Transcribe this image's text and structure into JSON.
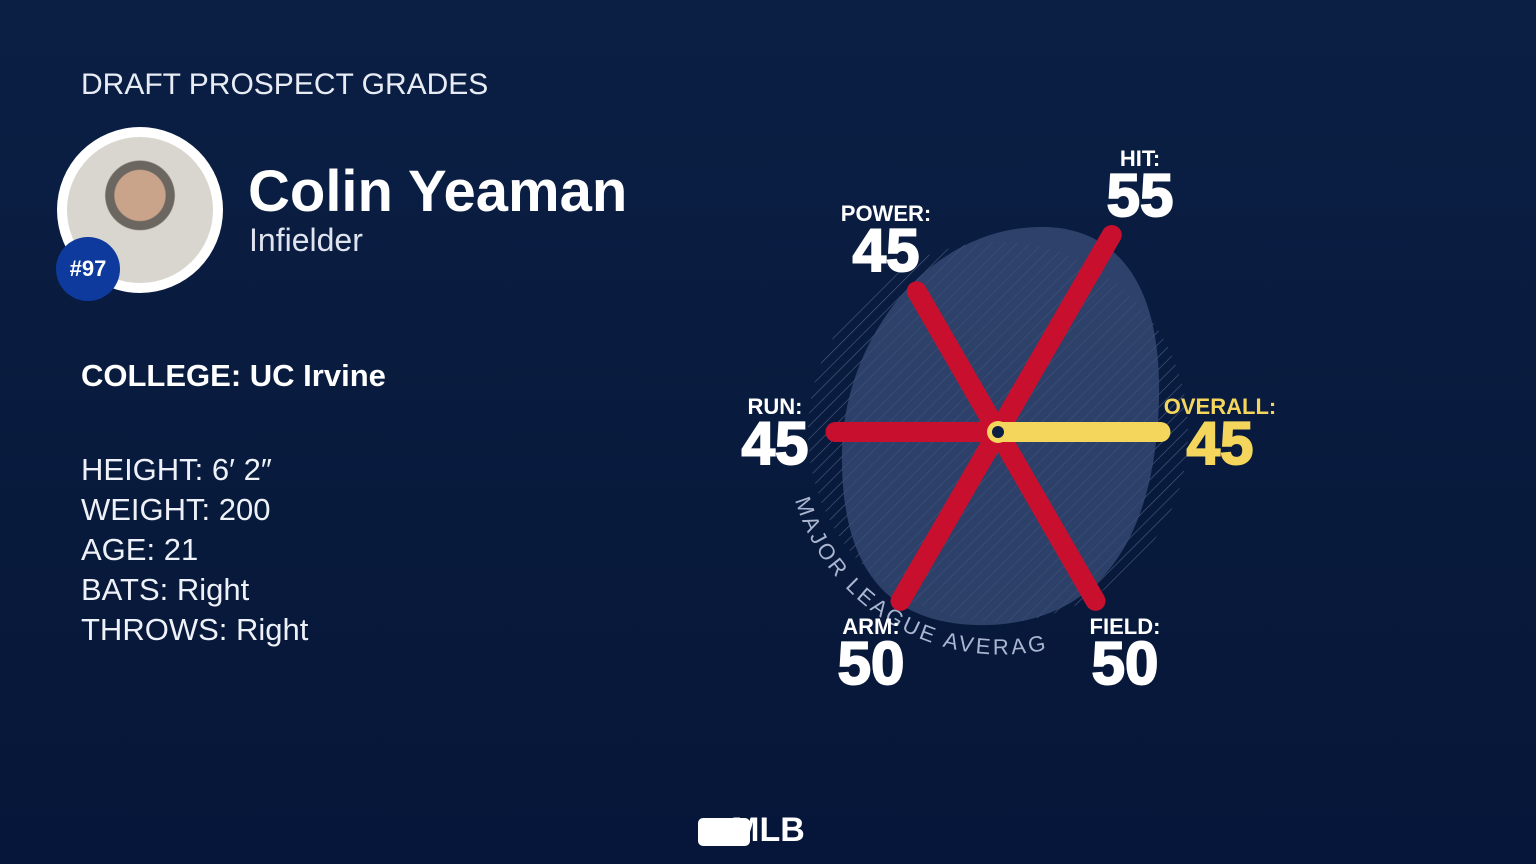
{
  "header": {
    "title": "DRAFT PROSPECT GRADES"
  },
  "player": {
    "name": "Colin Yeaman",
    "position": "Infielder",
    "number": "#97"
  },
  "college": {
    "label": "COLLEGE:",
    "value": "UC Irvine"
  },
  "bio": [
    {
      "label": "HEIGHT:",
      "value": "6′ 2″"
    },
    {
      "label": "WEIGHT:",
      "value": "200"
    },
    {
      "label": "AGE:",
      "value": "21"
    },
    {
      "label": "BATS:",
      "value": "Right"
    },
    {
      "label": "THROWS:",
      "value": "Right"
    }
  ],
  "grades": [
    {
      "label": "HIT:",
      "value": 55
    },
    {
      "label": "POWER:",
      "value": 45
    },
    {
      "label": "RUN:",
      "value": 45
    },
    {
      "label": "ARM:",
      "value": 50
    },
    {
      "label": "FIELD:",
      "value": 50
    },
    {
      "label": "OVERALL:",
      "value": 45
    }
  ],
  "annotation": "MAJOR LEAGUE AVERAGE",
  "logo": "MLB"
}
